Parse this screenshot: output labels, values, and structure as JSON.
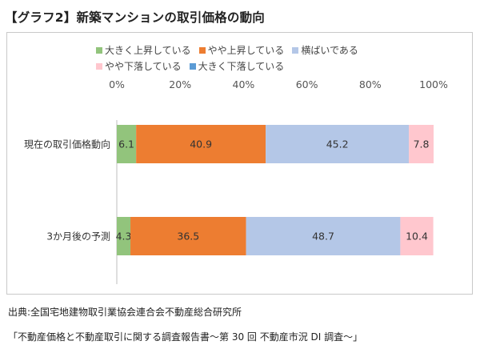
{
  "title": "【グラフ2】新築マンションの取引価格の動向",
  "chart_data": {
    "type": "bar",
    "orientation": "horizontal",
    "stacked": true,
    "categories": [
      "現在の取引価格動向",
      "3か月後の予測"
    ],
    "series": [
      {
        "name": "大きく上昇している",
        "values": [
          6.1,
          4.3
        ],
        "color": "#92c47c"
      },
      {
        "name": "やや上昇している",
        "values": [
          40.9,
          36.5
        ],
        "color": "#ed7d31"
      },
      {
        "name": "横ばいである",
        "values": [
          45.2,
          48.7
        ],
        "color": "#b4c7e7"
      },
      {
        "name": "やや下落している",
        "values": [
          7.8,
          10.4
        ],
        "color": "#ffc7ce"
      },
      {
        "name": "大きく下落している",
        "values": [
          0,
          0
        ],
        "color": "#5b9bd5"
      }
    ],
    "xlim": [
      0,
      100
    ],
    "ticks": [
      "0%",
      "20%",
      "40%",
      "60%",
      "80%",
      "100%"
    ],
    "tick_values": [
      0,
      20,
      40,
      60,
      80,
      100
    ],
    "data_labels": [
      [
        "6.1",
        "40.9",
        "45.2",
        "7.8"
      ],
      [
        "4.3",
        "36.5",
        "48.7",
        "10.4"
      ]
    ]
  },
  "source": {
    "line1": "出典:全国宅地建物取引業協会連合会不動産総合研究所",
    "line2": "「不動産価格と不動産取引に関する調査報告書～第 30 回 不動産市況 DI 調査～」"
  }
}
